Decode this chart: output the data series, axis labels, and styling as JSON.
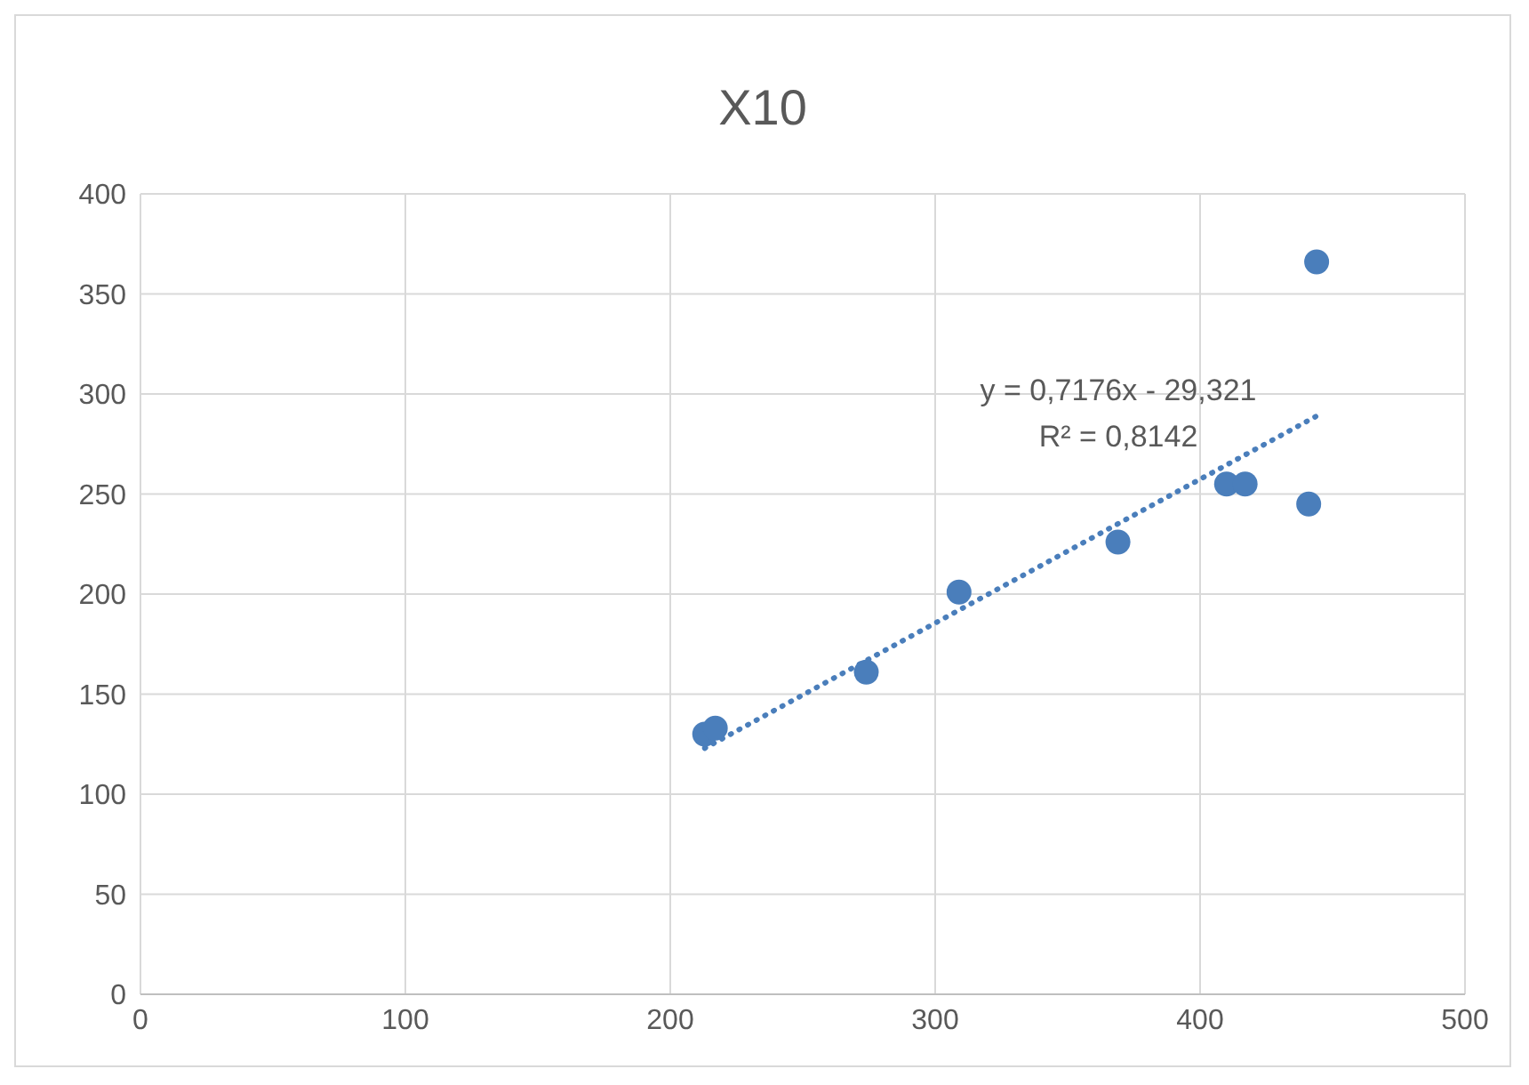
{
  "chart_data": {
    "type": "scatter",
    "title": "X10",
    "x": [
      213,
      217,
      274,
      309,
      369,
      410,
      417,
      441,
      444
    ],
    "series": [
      {
        "color": "#4a7ebb",
        "values": [
          130,
          133,
          161,
          201,
          226,
          255,
          255,
          245,
          366
        ],
        "marker": "circle"
      },
      {
        "type": "line",
        "color": "#4a7ebb",
        "x": [
          213,
          444
        ],
        "values": [
          123,
          289
        ],
        "line_style": "dotted",
        "marker": "none"
      }
    ],
    "xlim": [
      0,
      500
    ],
    "xticks": [
      0,
      100,
      200,
      300,
      400,
      500
    ],
    "ylim": [
      0,
      400
    ],
    "yticks": [
      0,
      50,
      100,
      150,
      200,
      250,
      300,
      350,
      400
    ],
    "grid": true,
    "annotations": [
      "y = 0,7176x - 29,321",
      "R² = 0,8142"
    ]
  }
}
